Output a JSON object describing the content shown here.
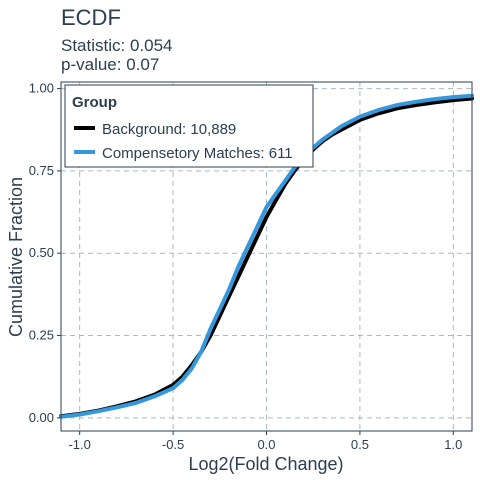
{
  "title": "ECDF",
  "statistic_text": "Statistic: 0.054",
  "pvalue_text": "p-value: 0.07",
  "chart_data": {
    "type": "line",
    "title": "ECDF",
    "xlabel": "Log2(Fold Change)",
    "ylabel": "Cumulative Fraction",
    "xlim": [
      -1.1,
      1.1
    ],
    "ylim": [
      -0.04,
      1.02
    ],
    "x_ticks": [
      -1.0,
      -0.5,
      0.0,
      0.5,
      1.0
    ],
    "x_tick_labels": [
      "-1.0",
      "-0.5",
      "0.0",
      "0.5",
      "1.0"
    ],
    "y_ticks": [
      0.0,
      0.25,
      0.5,
      0.75,
      1.0
    ],
    "y_tick_labels": [
      "0.00",
      "0.25",
      "0.50",
      "0.75",
      "1.00"
    ],
    "grid": true,
    "legend": {
      "title": "Group",
      "position": "top-left",
      "entries": [
        "Background: 10,889",
        "Compensetory Matches: 611"
      ]
    },
    "series": [
      {
        "name": "Background: 10,889",
        "color": "#000000",
        "x": [
          -1.1,
          -1.0,
          -0.9,
          -0.8,
          -0.7,
          -0.6,
          -0.5,
          -0.45,
          -0.4,
          -0.35,
          -0.3,
          -0.25,
          -0.2,
          -0.15,
          -0.1,
          -0.05,
          0.0,
          0.05,
          0.1,
          0.15,
          0.2,
          0.25,
          0.3,
          0.35,
          0.4,
          0.45,
          0.5,
          0.6,
          0.7,
          0.8,
          0.9,
          1.0,
          1.1
        ],
        "y": [
          0.005,
          0.012,
          0.022,
          0.035,
          0.05,
          0.07,
          0.1,
          0.125,
          0.16,
          0.2,
          0.25,
          0.31,
          0.37,
          0.43,
          0.49,
          0.55,
          0.61,
          0.66,
          0.71,
          0.75,
          0.785,
          0.815,
          0.84,
          0.86,
          0.875,
          0.89,
          0.905,
          0.925,
          0.94,
          0.95,
          0.958,
          0.965,
          0.97
        ]
      },
      {
        "name": "Compensetory Matches: 611",
        "color": "#3498db",
        "x": [
          -1.1,
          -1.0,
          -0.9,
          -0.8,
          -0.7,
          -0.6,
          -0.5,
          -0.45,
          -0.4,
          -0.35,
          -0.3,
          -0.25,
          -0.2,
          -0.15,
          -0.1,
          -0.05,
          0.0,
          0.05,
          0.1,
          0.15,
          0.2,
          0.25,
          0.3,
          0.35,
          0.4,
          0.45,
          0.5,
          0.6,
          0.7,
          0.8,
          0.9,
          1.0,
          1.1
        ],
        "y": [
          0.003,
          0.01,
          0.02,
          0.032,
          0.045,
          0.065,
          0.09,
          0.115,
          0.15,
          0.2,
          0.27,
          0.33,
          0.39,
          0.46,
          0.52,
          0.58,
          0.64,
          0.68,
          0.72,
          0.76,
          0.79,
          0.82,
          0.845,
          0.865,
          0.885,
          0.9,
          0.915,
          0.935,
          0.95,
          0.96,
          0.968,
          0.974,
          0.978
        ]
      }
    ]
  }
}
